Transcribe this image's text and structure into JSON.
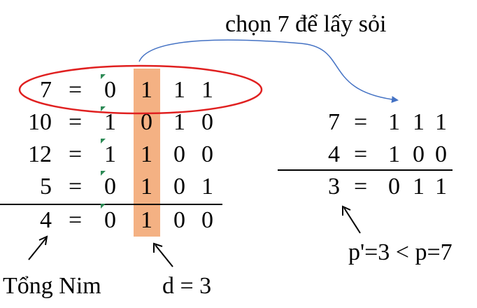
{
  "title": "chọn 7 để lấy sỏi",
  "left_table": {
    "rows": [
      {
        "label": "7",
        "eq": "=",
        "bits": [
          "0",
          "1",
          "1",
          "1"
        ]
      },
      {
        "label": "10",
        "eq": "=",
        "bits": [
          "1",
          "0",
          "1",
          "0"
        ]
      },
      {
        "label": "12",
        "eq": "=",
        "bits": [
          "1",
          "1",
          "0",
          "0"
        ]
      },
      {
        "label": "5",
        "eq": "=",
        "bits": [
          "0",
          "1",
          "0",
          "1"
        ]
      }
    ],
    "result": {
      "label": "4",
      "eq": "=",
      "bits": [
        "0",
        "1",
        "0",
        "0"
      ]
    }
  },
  "right_table": {
    "rows": [
      {
        "label": "7",
        "eq": "=",
        "bits": [
          "1",
          "1",
          "1"
        ]
      },
      {
        "label": "4",
        "eq": "=",
        "bits": [
          "1",
          "0",
          "0"
        ]
      }
    ],
    "result": {
      "label": "3",
      "eq": "=",
      "bits": [
        "0",
        "1",
        "1"
      ]
    }
  },
  "annotations": {
    "nim_sum": "Tổng Nim",
    "d_value": "d = 3",
    "comparison": "p'=3 < p=7"
  },
  "colors": {
    "highlight_column": "#F4B183",
    "ellipse": "#E02020",
    "curved_arrow": "#4472C4",
    "text": "#000000"
  }
}
